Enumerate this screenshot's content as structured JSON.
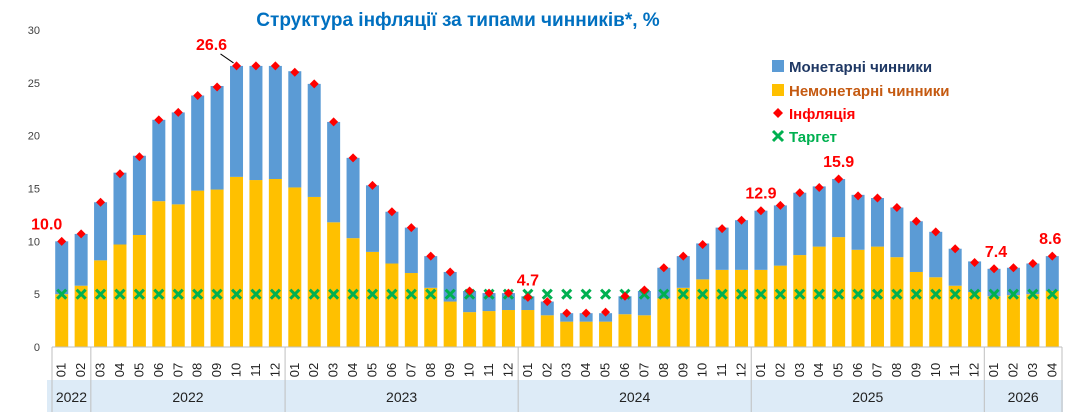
{
  "chart_data": {
    "type": "bar",
    "title": "Структура інфляції за типами чинників*,  %",
    "ylim": [
      0,
      30
    ],
    "yticks": [
      0,
      5,
      10,
      15,
      20,
      25,
      30
    ],
    "grid": false,
    "legend_position": "top-right",
    "colors": {
      "monetary": "#5B9BD5",
      "nonmonetary": "#FFC000",
      "inflation": "#FF0000",
      "target": "#00B050",
      "title": "#0070C0",
      "monetary_legend": "#1F3864",
      "nonmonetary_legend": "#C55A11",
      "year_band": "#DDEBF7"
    },
    "legend": {
      "monetary": "Монетарні чинники",
      "nonmonetary": "Немонетарні чинники",
      "inflation": "Інфляція",
      "target": "Таргет"
    },
    "categories": [
      "01",
      "02",
      "03",
      "04",
      "05",
      "06",
      "07",
      "08",
      "09",
      "10",
      "11",
      "12",
      "01",
      "02",
      "03",
      "04",
      "05",
      "06",
      "07",
      "08",
      "09",
      "10",
      "11",
      "12",
      "01",
      "02",
      "03",
      "04",
      "05",
      "06",
      "07",
      "08",
      "09",
      "10",
      "11",
      "12",
      "01",
      "02",
      "03",
      "04",
      "05",
      "06",
      "07",
      "08",
      "09",
      "10",
      "11",
      "12",
      "01",
      "02",
      "03",
      "04"
    ],
    "year_groups": [
      {
        "label": "2022",
        "count": 2
      },
      {
        "label": "2022",
        "count": 10
      },
      {
        "label": "2023",
        "count": 12
      },
      {
        "label": "2024",
        "count": 12
      },
      {
        "label": "2025",
        "count": 12
      },
      {
        "label": "2026",
        "count": 4
      }
    ],
    "series": [
      {
        "name": "Немонетарні чинники",
        "key": "nonmonetary",
        "values": [
          5.0,
          5.8,
          8.2,
          9.7,
          10.6,
          13.8,
          13.5,
          14.8,
          14.9,
          16.1,
          15.8,
          15.9,
          15.1,
          14.2,
          11.8,
          10.3,
          9.0,
          7.9,
          7.0,
          5.6,
          4.3,
          3.3,
          3.4,
          3.5,
          3.5,
          3.0,
          2.4,
          2.4,
          2.4,
          3.1,
          3.0,
          4.6,
          5.6,
          6.4,
          7.3,
          7.3,
          7.3,
          7.7,
          8.7,
          9.5,
          10.4,
          9.2,
          9.5,
          8.5,
          7.1,
          6.6,
          5.8,
          5.2,
          4.8,
          4.9,
          5.0,
          5.3
        ]
      },
      {
        "name": "Монетарні чинники",
        "key": "monetary",
        "values": [
          5.0,
          4.9,
          5.5,
          6.8,
          7.5,
          7.7,
          8.7,
          9.0,
          9.8,
          10.5,
          10.8,
          10.7,
          11.0,
          10.7,
          9.5,
          7.6,
          6.3,
          4.9,
          4.3,
          3.0,
          2.8,
          2.0,
          1.7,
          1.6,
          1.3,
          1.3,
          0.8,
          0.8,
          0.8,
          1.7,
          2.3,
          2.9,
          3.0,
          3.4,
          4.0,
          4.7,
          5.6,
          5.7,
          5.9,
          5.7,
          5.5,
          5.2,
          4.6,
          4.7,
          4.8,
          4.3,
          3.5,
          2.9,
          2.6,
          2.6,
          2.9,
          3.3
        ]
      }
    ],
    "inflation": [
      10.0,
      10.7,
      13.7,
      16.4,
      18.0,
      21.5,
      22.2,
      23.8,
      24.6,
      26.6,
      26.6,
      26.6,
      26.0,
      24.9,
      21.3,
      17.9,
      15.3,
      12.8,
      11.3,
      8.6,
      7.1,
      5.3,
      5.1,
      5.1,
      4.7,
      4.3,
      3.2,
      3.2,
      3.3,
      4.8,
      5.4,
      7.5,
      8.6,
      9.7,
      11.2,
      12.0,
      12.9,
      13.4,
      14.6,
      15.1,
      15.9,
      14.3,
      14.1,
      13.2,
      11.9,
      10.9,
      9.3,
      8.0,
      7.4,
      7.5,
      7.9,
      8.6
    ],
    "target": [
      5,
      5,
      5,
      5,
      5,
      5,
      5,
      5,
      5,
      5,
      5,
      5,
      5,
      5,
      5,
      5,
      5,
      5,
      5,
      5,
      5,
      5,
      5,
      5,
      5,
      5,
      5,
      5,
      5,
      5,
      5,
      5,
      5,
      5,
      5,
      5,
      5,
      5,
      5,
      5,
      5,
      5,
      5,
      5,
      5,
      5,
      5,
      5,
      5,
      5,
      5,
      5
    ],
    "data_labels": [
      {
        "index": 0,
        "text": "10.0"
      },
      {
        "index": 9,
        "text": "26.6"
      },
      {
        "index": 24,
        "text": "4.7"
      },
      {
        "index": 36,
        "text": "12.9"
      },
      {
        "index": 40,
        "text": "15.9"
      },
      {
        "index": 48,
        "text": "7.4"
      },
      {
        "index": 51,
        "text": "8.6"
      }
    ]
  }
}
